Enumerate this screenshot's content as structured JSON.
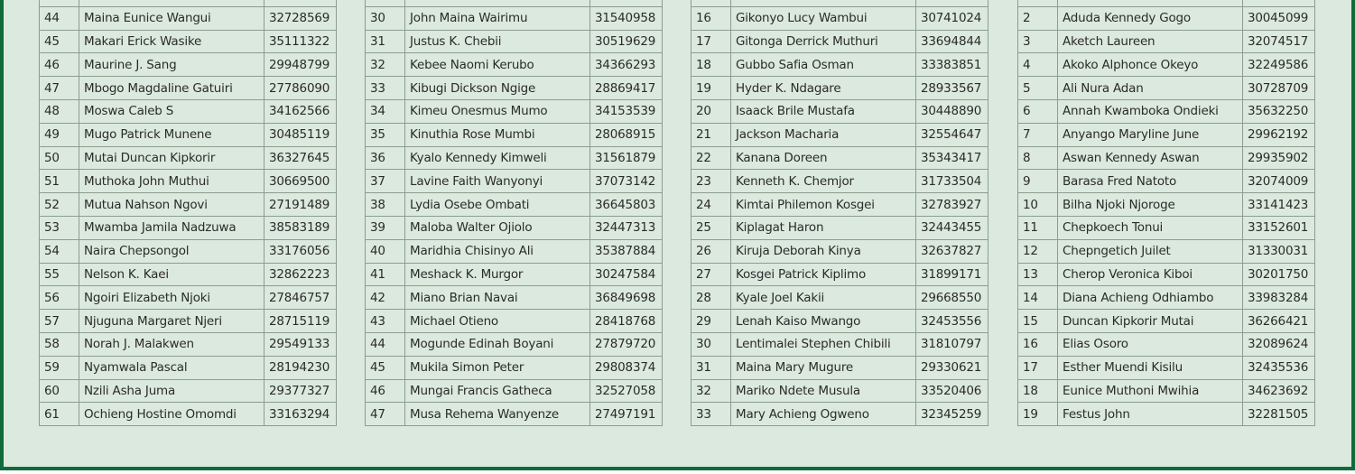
{
  "colors": {
    "background": "#dce9de",
    "border": "#0f6b3a",
    "grid": "#8d9c90"
  },
  "tables": [
    {
      "rows": [
        [
          "44",
          "Maina Eunice Wangui",
          "32728569"
        ],
        [
          "45",
          "Makari Erick Wasike",
          "35111322"
        ],
        [
          "46",
          "Maurine J. Sang",
          "29948799"
        ],
        [
          "47",
          "Mbogo Magdaline Gatuiri",
          "27786090"
        ],
        [
          "48",
          "Moswa Caleb S",
          "34162566"
        ],
        [
          "49",
          "Mugo Patrick Munene",
          "30485119"
        ],
        [
          "50",
          "Mutai Duncan Kipkorir",
          "36327645"
        ],
        [
          "51",
          "Muthoka John Muthui",
          "30669500"
        ],
        [
          "52",
          "Mutua Nahson Ngovi",
          "27191489"
        ],
        [
          "53",
          "Mwamba Jamila Nadzuwa",
          "38583189"
        ],
        [
          "54",
          "Naira Chepsongol",
          "33176056"
        ],
        [
          "55",
          "Nelson K. Kaei",
          "32862223"
        ],
        [
          "56",
          "Ngoiri Elizabeth Njoki",
          "27846757"
        ],
        [
          "57",
          "Njuguna Margaret Njeri",
          "28715119"
        ],
        [
          "58",
          "Norah J. Malakwen",
          "29549133"
        ],
        [
          "59",
          "Nyamwala Pascal",
          "28194230"
        ],
        [
          "60",
          "Nzili Asha Juma",
          "29377327"
        ],
        [
          "61",
          "Ochieng Hostine Omomdi",
          "33163294"
        ]
      ]
    },
    {
      "rows": [
        [
          "30",
          "John Maina Wairimu",
          "31540958"
        ],
        [
          "31",
          "Justus K. Chebii",
          "30519629"
        ],
        [
          "32",
          "Kebee Naomi Kerubo",
          "34366293"
        ],
        [
          "33",
          "Kibugi Dickson Ngige",
          "28869417"
        ],
        [
          "34",
          "Kimeu Onesmus Mumo",
          "34153539"
        ],
        [
          "35",
          "Kinuthia Rose Mumbi",
          "28068915"
        ],
        [
          "36",
          "Kyalo Kennedy Kimweli",
          "31561879"
        ],
        [
          "37",
          "Lavine Faith Wanyonyi",
          "37073142"
        ],
        [
          "38",
          "Lydia Osebe Ombati",
          "36645803"
        ],
        [
          "39",
          "Maloba Walter Ojiolo",
          "32447313"
        ],
        [
          "40",
          "Maridhia Chisinyo Ali",
          "35387884"
        ],
        [
          "41",
          "Meshack K. Murgor",
          "30247584"
        ],
        [
          "42",
          "Miano Brian Navai",
          "36849698"
        ],
        [
          "43",
          "Michael Otieno",
          "28418768"
        ],
        [
          "44",
          "Mogunde Edinah Boyani",
          "27879720"
        ],
        [
          "45",
          "Mukila Simon Peter",
          "29808374"
        ],
        [
          "46",
          "Mungai Francis Gatheca",
          "32527058"
        ],
        [
          "47",
          "Musa Rehema Wanyenze",
          "27497191"
        ]
      ]
    },
    {
      "rows": [
        [
          "16",
          "Gikonyo Lucy Wambui",
          "30741024"
        ],
        [
          "17",
          "Gitonga Derrick Muthuri",
          "33694844"
        ],
        [
          "18",
          "Gubbo Safia Osman",
          "33383851"
        ],
        [
          "19",
          "Hyder K. Ndagare",
          "28933567"
        ],
        [
          "20",
          "Isaack Brile Mustafa",
          "30448890"
        ],
        [
          "21",
          "Jackson Macharia",
          "32554647"
        ],
        [
          "22",
          "Kanana Doreen",
          "35343417"
        ],
        [
          "23",
          "Kenneth K. Chemjor",
          "31733504"
        ],
        [
          "24",
          "Kimtai Philemon Kosgei",
          "32783927"
        ],
        [
          "25",
          "Kiplagat Haron",
          "32443455"
        ],
        [
          "26",
          "Kiruja Deborah Kinya",
          "32637827"
        ],
        [
          "27",
          "Kosgei Patrick Kiplimo",
          "31899171"
        ],
        [
          "28",
          "Kyale Joel Kakii",
          "29668550"
        ],
        [
          "29",
          "Lenah Kaiso Mwango",
          "32453556"
        ],
        [
          "30",
          "Lentimalei Stephen Chibili",
          "31810797"
        ],
        [
          "31",
          "Maina Mary Mugure",
          "29330621"
        ],
        [
          "32",
          "Mariko Ndete Musula",
          "33520406"
        ],
        [
          "33",
          "Mary Achieng Ogweno",
          "32345259"
        ]
      ]
    },
    {
      "rows": [
        [
          "2",
          "Aduda Kennedy Gogo",
          "30045099"
        ],
        [
          "3",
          "Aketch Laureen",
          "32074517"
        ],
        [
          "4",
          "Akoko Alphonce Okeyo",
          "32249586"
        ],
        [
          "5",
          "Ali Nura Adan",
          "30728709"
        ],
        [
          "6",
          "Annah Kwamboka Ondieki",
          "35632250"
        ],
        [
          "7",
          "Anyango Maryline June",
          "29962192"
        ],
        [
          "8",
          "Aswan Kennedy  Aswan",
          "29935902"
        ],
        [
          "9",
          "Barasa Fred Natoto",
          "32074009"
        ],
        [
          "10",
          "Bilha Njoki Njoroge",
          "33141423"
        ],
        [
          "11",
          "Chepkoech Tonui",
          "33152601"
        ],
        [
          "12",
          "Chepngetich Juilet",
          "31330031"
        ],
        [
          "13",
          "Cherop Veronica Kiboi",
          "30201750"
        ],
        [
          "14",
          "Diana Achieng Odhiambo",
          "33983284"
        ],
        [
          "15",
          "Duncan Kipkorir Mutai",
          "36266421"
        ],
        [
          "16",
          "Elias Osoro",
          "32089624"
        ],
        [
          "17",
          "Esther Muendi Kisilu",
          "32435536"
        ],
        [
          "18",
          "Eunice Muthoni Mwihia",
          "34623692"
        ],
        [
          "19",
          "Festus John",
          "32281505"
        ]
      ]
    }
  ]
}
